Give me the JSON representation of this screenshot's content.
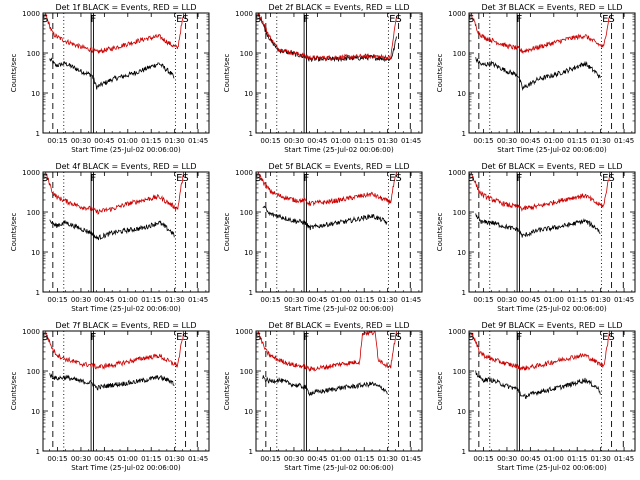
{
  "chart_data": {
    "type": "line",
    "layout": "3x3 grid",
    "x_tick_labels": [
      "00:15",
      "00:30",
      "00:45",
      "01:00",
      "01:15",
      "01:30",
      "01:45"
    ],
    "x_ticks_minutes": [
      15,
      30,
      45,
      60,
      75,
      90,
      105
    ],
    "x_range_minutes": [
      5.7,
      112
    ],
    "xlabel": "Start Time (25-Jul-02 00:06:00)",
    "ylabel": "Counts/sec",
    "y_scale": "log",
    "ylim": [
      1,
      1000
    ],
    "y_tick_labels": [
      "1",
      "10",
      "100",
      "1000"
    ],
    "markers": [
      {
        "label": "S",
        "time_min": 7
      },
      {
        "label": "F",
        "time_min": 38
      },
      {
        "label": "E",
        "time_min": 93
      },
      {
        "label": "S",
        "time_min": 97
      }
    ],
    "vlines": [
      {
        "time_min": 12,
        "style": "dashed"
      },
      {
        "time_min": 19,
        "style": "dotted"
      },
      {
        "time_min": 36.5,
        "style": "solid"
      },
      {
        "time_min": 38,
        "style": "solid"
      },
      {
        "time_min": 90.5,
        "style": "dotted"
      },
      {
        "time_min": 97,
        "style": "dashed"
      },
      {
        "time_min": 104.5,
        "style": "dashed"
      }
    ],
    "panels": [
      {
        "title": "Det 1f BLACK = Events, RED = LLD",
        "series": [
          {
            "name": "Events",
            "color": "#000000",
            "times": [
              10,
              14,
              20,
              30,
              37,
              40,
              50,
              60,
              70,
              80,
              88,
              90
            ],
            "values": [
              70,
              48,
              55,
              35,
              28,
              14,
              22,
              28,
              38,
              55,
              30,
              22
            ]
          },
          {
            "name": "LLD",
            "color": "#cc0000",
            "times": [
              7,
              9,
              12,
              15,
              20,
              30,
              37,
              40,
              50,
              60,
              70,
              80,
              88,
              92,
              94,
              96
            ],
            "values": [
              1000,
              600,
              300,
              250,
              200,
              140,
              120,
              105,
              130,
              170,
              220,
              260,
              160,
              130,
              400,
              1000
            ]
          }
        ]
      },
      {
        "title": "Det 2f BLACK = Events, RED = LLD",
        "series": [
          {
            "name": "Events",
            "color": "#000000",
            "times": [
              7,
              9,
              12,
              15,
              20,
              30,
              37,
              40,
              50,
              60,
              70,
              80,
              88,
              92,
              94,
              96
            ],
            "values": [
              1000,
              700,
              350,
              210,
              120,
              95,
              80,
              70,
              70,
              72,
              74,
              78,
              72,
              70,
              120,
              300
            ]
          },
          {
            "name": "LLD",
            "color": "#cc0000",
            "times": [
              7,
              9,
              12,
              15,
              20,
              30,
              37,
              40,
              50,
              60,
              70,
              80,
              88,
              92,
              94,
              96
            ],
            "values": [
              1000,
              750,
              400,
              230,
              125,
              100,
              85,
              75,
              75,
              78,
              80,
              84,
              78,
              76,
              300,
              1000
            ]
          }
        ]
      },
      {
        "title": "Det 3f BLACK = Events, RED = LLD",
        "series": [
          {
            "name": "Events",
            "color": "#000000",
            "times": [
              10,
              14,
              20,
              30,
              37,
              40,
              50,
              60,
              70,
              80,
              88,
              90
            ],
            "values": [
              70,
              50,
              55,
              35,
              28,
              13,
              22,
              28,
              38,
              55,
              30,
              22
            ]
          },
          {
            "name": "LLD",
            "color": "#cc0000",
            "times": [
              7,
              9,
              12,
              15,
              20,
              30,
              37,
              40,
              50,
              60,
              70,
              80,
              88,
              92,
              94,
              96
            ],
            "values": [
              1000,
              600,
              320,
              250,
              210,
              150,
              130,
              110,
              140,
              180,
              230,
              270,
              170,
              140,
              400,
              1000
            ]
          }
        ]
      },
      {
        "title": "Det 4f BLACK = Events, RED = LLD",
        "series": [
          {
            "name": "Events",
            "color": "#000000",
            "times": [
              10,
              14,
              20,
              30,
              37,
              40,
              50,
              60,
              70,
              80,
              88,
              90
            ],
            "values": [
              60,
              45,
              55,
              38,
              30,
              22,
              30,
              35,
              40,
              55,
              32,
              25
            ]
          },
          {
            "name": "LLD",
            "color": "#cc0000",
            "times": [
              7,
              9,
              12,
              15,
              20,
              30,
              37,
              40,
              50,
              60,
              70,
              80,
              88,
              92,
              94,
              96
            ],
            "values": [
              1000,
              650,
              300,
              230,
              190,
              135,
              120,
              100,
              120,
              160,
              200,
              240,
              150,
              120,
              400,
              1000
            ]
          }
        ]
      },
      {
        "title": "Det 5f BLACK = Events, RED = LLD",
        "series": [
          {
            "name": "Events",
            "color": "#000000",
            "times": [
              10,
              14,
              20,
              30,
              37,
              40,
              50,
              60,
              70,
              80,
              88,
              90
            ],
            "values": [
              150,
              90,
              80,
              60,
              55,
              40,
              48,
              55,
              65,
              80,
              60,
              50
            ]
          },
          {
            "name": "LLD",
            "color": "#cc0000",
            "times": [
              7,
              9,
              12,
              15,
              20,
              30,
              37,
              40,
              50,
              60,
              70,
              80,
              88,
              92,
              94,
              96
            ],
            "values": [
              1000,
              700,
              450,
              330,
              260,
              200,
              190,
              165,
              175,
              200,
              240,
              280,
              200,
              180,
              500,
              1000
            ]
          }
        ]
      },
      {
        "title": "Det 6f BLACK = Events, RED = LLD",
        "series": [
          {
            "name": "Events",
            "color": "#000000",
            "times": [
              10,
              14,
              20,
              30,
              37,
              40,
              50,
              60,
              70,
              80,
              88,
              90
            ],
            "values": [
              80,
              55,
              55,
              42,
              36,
              25,
              35,
              40,
              48,
              60,
              38,
              28
            ]
          },
          {
            "name": "LLD",
            "color": "#cc0000",
            "times": [
              7,
              9,
              12,
              15,
              20,
              30,
              37,
              40,
              50,
              60,
              70,
              80,
              88,
              92,
              94,
              96
            ],
            "values": [
              1000,
              650,
              330,
              260,
              210,
              150,
              135,
              120,
              140,
              175,
              220,
              260,
              160,
              140,
              400,
              1000
            ]
          }
        ]
      },
      {
        "title": "Det 7f BLACK = Events, RED = LLD",
        "series": [
          {
            "name": "Events",
            "color": "#000000",
            "times": [
              10,
              14,
              20,
              30,
              37,
              40,
              50,
              60,
              70,
              80,
              88,
              90
            ],
            "values": [
              80,
              65,
              70,
              55,
              50,
              38,
              45,
              50,
              58,
              70,
              55,
              45
            ]
          },
          {
            "name": "LLD",
            "color": "#cc0000",
            "times": [
              7,
              9,
              12,
              15,
              20,
              30,
              37,
              40,
              50,
              60,
              70,
              80,
              88,
              92,
              94,
              96
            ],
            "values": [
              1000,
              650,
              340,
              250,
              200,
              150,
              140,
              125,
              140,
              170,
              210,
              240,
              160,
              140,
              400,
              1000
            ]
          }
        ]
      },
      {
        "title": "Det 8f BLACK = Events, RED = LLD",
        "series": [
          {
            "name": "Events",
            "color": "#000000",
            "times": [
              10,
              14,
              20,
              30,
              37,
              40,
              50,
              60,
              70,
              80,
              88,
              90
            ],
            "values": [
              70,
              55,
              60,
              45,
              40,
              28,
              32,
              38,
              42,
              48,
              35,
              28
            ]
          },
          {
            "name": "LLD",
            "color": "#cc0000",
            "times": [
              7,
              9,
              12,
              15,
              20,
              30,
              37,
              40,
              50,
              60,
              72,
              74,
              82,
              84,
              88,
              92,
              94,
              96
            ],
            "values": [
              1000,
              600,
              320,
              240,
              190,
              140,
              130,
              110,
              125,
              150,
              170,
              900,
              900,
              200,
              150,
              130,
              400,
              1000
            ]
          }
        ]
      },
      {
        "title": "Det 9f BLACK = Events, RED = LLD",
        "series": [
          {
            "name": "Events",
            "color": "#000000",
            "times": [
              10,
              14,
              20,
              30,
              37,
              40,
              50,
              60,
              70,
              80,
              88,
              90
            ],
            "values": [
              90,
              60,
              60,
              42,
              35,
              22,
              30,
              36,
              45,
              60,
              38,
              28
            ]
          },
          {
            "name": "LLD",
            "color": "#cc0000",
            "times": [
              7,
              9,
              12,
              15,
              20,
              30,
              37,
              40,
              50,
              60,
              70,
              80,
              88,
              92,
              94,
              96
            ],
            "values": [
              1000,
              650,
              320,
              250,
              200,
              150,
              130,
              115,
              135,
              170,
              215,
              250,
              160,
              135,
              400,
              1000
            ]
          }
        ]
      }
    ]
  }
}
